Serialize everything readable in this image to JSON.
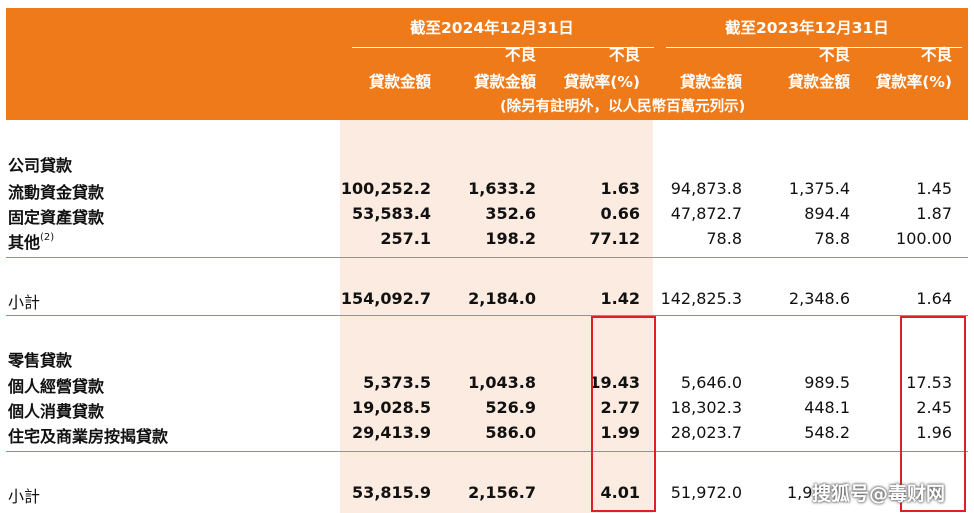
{
  "header": {
    "period_2024": "截至2024年12月31日",
    "period_2023": "截至2023年12月31日",
    "columns_2024": [
      {
        "top": "",
        "bottom": "貸款金額"
      },
      {
        "top": "不良",
        "bottom": "貸款金額"
      },
      {
        "top": "不良",
        "bottom": "貸款率(%)"
      }
    ],
    "columns_2023": [
      {
        "top": "",
        "bottom": "貸款金額"
      },
      {
        "top": "不良",
        "bottom": "貸款金額"
      },
      {
        "top": "不良",
        "bottom": "貸款率(%)"
      }
    ],
    "note": "(除另有註明外，以人民幣百萬元列示)"
  },
  "sections": [
    {
      "title": "公司貸款",
      "rows": [
        {
          "label": "流動資金貸款",
          "sup": "",
          "values": [
            "100,252.2",
            "1,633.2",
            "1.63",
            "94,873.8",
            "1,375.4",
            "1.45"
          ]
        },
        {
          "label": "固定資產貸款",
          "sup": "",
          "values": [
            "53,583.4",
            "352.6",
            "0.66",
            "47,872.7",
            "894.4",
            "1.87"
          ]
        },
        {
          "label": "其他",
          "sup": "(2)",
          "values": [
            "257.1",
            "198.2",
            "77.12",
            "78.8",
            "78.8",
            "100.00"
          ]
        }
      ],
      "subtotal": {
        "label": "小計",
        "values": [
          "154,092.7",
          "2,184.0",
          "1.42",
          "142,825.3",
          "2,348.6",
          "1.64"
        ]
      }
    },
    {
      "title": "零售貸款",
      "rows": [
        {
          "label": "個人經營貸款",
          "sup": "",
          "values": [
            "5,373.5",
            "1,043.8",
            "19.43",
            "5,646.0",
            "989.5",
            "17.53"
          ]
        },
        {
          "label": "個人消費貸款",
          "sup": "",
          "values": [
            "19,028.5",
            "526.9",
            "2.77",
            "18,302.3",
            "448.1",
            "2.45"
          ]
        },
        {
          "label": "住宅及商業房按揭貸款",
          "sup": "",
          "values": [
            "29,413.9",
            "586.0",
            "1.99",
            "28,023.7",
            "548.2",
            "1.96"
          ]
        }
      ],
      "subtotal": {
        "label": "小計",
        "values": [
          "53,815.9",
          "2,156.7",
          "4.01",
          "51,972.0",
          "1,9",
          ""
        ]
      }
    }
  ],
  "watermark": "搜狐号@毒财网",
  "colors": {
    "header_bg": "#ef7a1a",
    "shade": "#fcebe0",
    "highlight_box": "#e02020"
  }
}
